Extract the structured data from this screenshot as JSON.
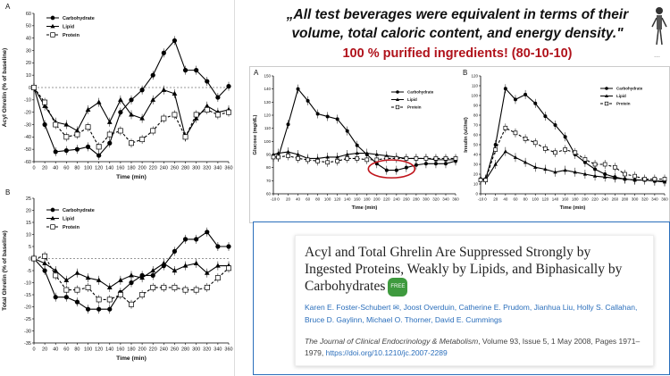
{
  "quote": {
    "text": "„All test beverages were equivalent in terms of their volume, total caloric content, and energy density.\"",
    "highlight": "100 % purified ingredients! (80-10-10)"
  },
  "paper": {
    "title": "Acyl and Total Ghrelin Are Suppressed Strongly by Ingested Proteins, Weakly by Lipids, and Biphasically by Carbohydrates",
    "badge": "FREE",
    "authors": "Karen E. Foster-Schubert ✉, Joost Overduin, Catherine E. Prudom, Jianhua Liu, Holly S. Callahan, Bruce D. Gaylinn, Michael O. Thorner, David E. Cummings",
    "journal": "The Journal of Clinical Endocrinology & Metabolism",
    "citation_rest": ", Volume 93, Issue 5, 1 May 2008, Pages 1971–1979, ",
    "doi": "https://doi.org/10.1210/jc.2007-2289"
  },
  "chart_data": [
    {
      "panel": "A",
      "type": "line",
      "ylabel": "Acyl Ghrelin (% of baseline)",
      "xlabel": "Time (min)",
      "ylim": [
        -60,
        60
      ],
      "yticks": [
        -60,
        -50,
        -40,
        -30,
        -20,
        -10,
        0,
        10,
        20,
        30,
        40,
        50,
        60
      ],
      "xticks": [
        0,
        20,
        40,
        60,
        80,
        100,
        120,
        140,
        160,
        180,
        200,
        220,
        240,
        260,
        280,
        300,
        320,
        340,
        360
      ],
      "legend_position": "top-left",
      "series": [
        {
          "name": "Carbohydrate",
          "marker": "circle",
          "dash": false,
          "x": [
            0,
            20,
            40,
            60,
            80,
            100,
            120,
            140,
            160,
            180,
            200,
            220,
            240,
            260,
            280,
            300,
            320,
            340,
            360
          ],
          "y": [
            0,
            -30,
            -52,
            -51,
            -50,
            -48,
            -55,
            -45,
            -20,
            -10,
            -2,
            10,
            28,
            38,
            14,
            14,
            5,
            -8,
            1
          ]
        },
        {
          "name": "Lipid",
          "marker": "triangle",
          "dash": false,
          "x": [
            0,
            20,
            40,
            60,
            80,
            100,
            120,
            140,
            160,
            180,
            200,
            220,
            240,
            260,
            280,
            300,
            320,
            340,
            360
          ],
          "y": [
            0,
            -15,
            -28,
            -30,
            -35,
            -18,
            -12,
            -28,
            -10,
            -22,
            -25,
            -10,
            -2,
            -5,
            -40,
            -25,
            -15,
            -20,
            -18
          ]
        },
        {
          "name": "Protein",
          "marker": "square",
          "dash": true,
          "x": [
            0,
            20,
            40,
            60,
            80,
            100,
            120,
            140,
            160,
            180,
            200,
            220,
            240,
            260,
            280,
            300,
            320,
            340,
            360
          ],
          "y": [
            0,
            -12,
            -30,
            -40,
            -38,
            -32,
            -48,
            -38,
            -35,
            -45,
            -42,
            -35,
            -25,
            -22,
            -40,
            -22,
            -18,
            -22,
            -20
          ]
        }
      ]
    },
    {
      "panel": "B",
      "type": "line",
      "ylabel": "Total Ghrelin (% of baseline)",
      "xlabel": "Time (min)",
      "ylim": [
        -35,
        25
      ],
      "yticks": [
        -35,
        -30,
        -25,
        -20,
        -15,
        -10,
        -5,
        0,
        5,
        10,
        15,
        20,
        25
      ],
      "xticks": [
        0,
        20,
        40,
        60,
        80,
        100,
        120,
        140,
        160,
        180,
        200,
        220,
        240,
        260,
        280,
        300,
        320,
        340,
        360
      ],
      "legend_position": "top-left",
      "series": [
        {
          "name": "Carbohydrate",
          "marker": "circle",
          "dash": false,
          "x": [
            0,
            20,
            40,
            60,
            80,
            100,
            120,
            140,
            160,
            180,
            200,
            220,
            240,
            260,
            280,
            300,
            320,
            340,
            360
          ],
          "y": [
            0,
            -5,
            -16,
            -16,
            -18,
            -21,
            -21,
            -21,
            -14,
            -10,
            -7,
            -7,
            -3,
            3,
            8,
            8,
            11,
            5,
            5
          ]
        },
        {
          "name": "Lipid",
          "marker": "triangle",
          "dash": false,
          "x": [
            0,
            20,
            40,
            60,
            80,
            100,
            120,
            140,
            160,
            180,
            200,
            220,
            240,
            260,
            280,
            300,
            320,
            340,
            360
          ],
          "y": [
            0,
            -2,
            -5,
            -9,
            -6,
            -8,
            -9,
            -12,
            -9,
            -7,
            -8,
            -5,
            -2,
            -5,
            -3,
            -2,
            -6,
            -3,
            -3
          ]
        },
        {
          "name": "Protein",
          "marker": "square",
          "dash": true,
          "x": [
            0,
            20,
            40,
            60,
            80,
            100,
            120,
            140,
            160,
            180,
            200,
            220,
            240,
            260,
            280,
            300,
            320,
            340,
            360
          ],
          "y": [
            0,
            1,
            -7,
            -13,
            -13,
            -12,
            -17,
            -17,
            -15,
            -19,
            -15,
            -12,
            -12,
            -12,
            -13,
            -13,
            -12,
            -8,
            -4
          ]
        }
      ]
    },
    {
      "panel": "A",
      "type": "line",
      "ylabel": "Glucose (mg/dL)",
      "xlabel": "Time (min)",
      "ylim": [
        60,
        150
      ],
      "yticks": [
        60,
        70,
        80,
        90,
        100,
        110,
        120,
        130,
        140,
        150
      ],
      "xticks": [
        -10,
        0,
        20,
        40,
        60,
        80,
        100,
        120,
        140,
        160,
        180,
        200,
        220,
        240,
        260,
        280,
        300,
        320,
        340,
        360
      ],
      "legend_position": "top-right",
      "annotation": "red ellipse around 200–260 min of the Carbohydrate series",
      "series": [
        {
          "name": "Carbohydrate",
          "marker": "circle",
          "dash": false,
          "x": [
            -10,
            0,
            20,
            40,
            60,
            80,
            100,
            120,
            140,
            160,
            180,
            200,
            220,
            240,
            260,
            280,
            300,
            320,
            340,
            360
          ],
          "y": [
            88,
            88,
            113,
            140,
            131,
            121,
            119,
            117,
            108,
            97,
            90,
            83,
            78,
            78,
            80,
            82,
            83,
            83,
            83,
            85
          ]
        },
        {
          "name": "Lipid",
          "marker": "triangle",
          "dash": false,
          "x": [
            -10,
            0,
            20,
            40,
            60,
            80,
            100,
            120,
            140,
            160,
            180,
            200,
            220,
            240,
            260,
            280,
            300,
            320,
            340,
            360
          ],
          "y": [
            90,
            91,
            92,
            90,
            87,
            87,
            88,
            88,
            90,
            91,
            91,
            90,
            89,
            88,
            87,
            87,
            87,
            86,
            86,
            86
          ]
        },
        {
          "name": "Protein",
          "marker": "square",
          "dash": true,
          "x": [
            -10,
            0,
            20,
            40,
            60,
            80,
            100,
            120,
            140,
            160,
            180,
            200,
            220,
            240,
            260,
            280,
            300,
            320,
            340,
            360
          ],
          "y": [
            88,
            88,
            89,
            87,
            86,
            85,
            84,
            85,
            87,
            87,
            86,
            86,
            87,
            87,
            87,
            87,
            87,
            87,
            87,
            87
          ]
        }
      ]
    },
    {
      "panel": "B",
      "type": "line",
      "ylabel": "Insulin (uU/ml)",
      "xlabel": "Time (min)",
      "ylim": [
        0,
        120
      ],
      "yticks": [
        0,
        10,
        20,
        30,
        40,
        50,
        60,
        70,
        80,
        90,
        100,
        110,
        120
      ],
      "xticks": [
        -10,
        0,
        20,
        40,
        60,
        80,
        100,
        120,
        140,
        160,
        180,
        200,
        220,
        240,
        260,
        280,
        300,
        320,
        340,
        360
      ],
      "legend_position": "top-right",
      "series": [
        {
          "name": "Carbohydrate",
          "marker": "circle",
          "dash": false,
          "x": [
            -10,
            0,
            20,
            40,
            60,
            80,
            100,
            120,
            140,
            160,
            180,
            200,
            220,
            240,
            260,
            280,
            300,
            320,
            340,
            360
          ],
          "y": [
            15,
            15,
            50,
            107,
            96,
            101,
            92,
            79,
            70,
            58,
            40,
            32,
            25,
            20,
            17,
            15,
            14,
            14,
            13,
            13
          ]
        },
        {
          "name": "Lipid",
          "marker": "triangle",
          "dash": false,
          "x": [
            -10,
            0,
            20,
            40,
            60,
            80,
            100,
            120,
            140,
            160,
            180,
            200,
            220,
            240,
            260,
            280,
            300,
            320,
            340,
            360
          ],
          "y": [
            14,
            14,
            30,
            43,
            37,
            32,
            27,
            25,
            22,
            24,
            22,
            20,
            18,
            17,
            16,
            15,
            14,
            14,
            13,
            12
          ]
        },
        {
          "name": "Protein",
          "marker": "square",
          "dash": true,
          "x": [
            -10,
            0,
            20,
            40,
            60,
            80,
            100,
            120,
            140,
            160,
            180,
            200,
            220,
            240,
            260,
            280,
            300,
            320,
            340,
            360
          ],
          "y": [
            14,
            14,
            45,
            67,
            62,
            56,
            52,
            46,
            42,
            45,
            42,
            35,
            30,
            30,
            27,
            20,
            18,
            15,
            15,
            15
          ]
        }
      ]
    }
  ]
}
